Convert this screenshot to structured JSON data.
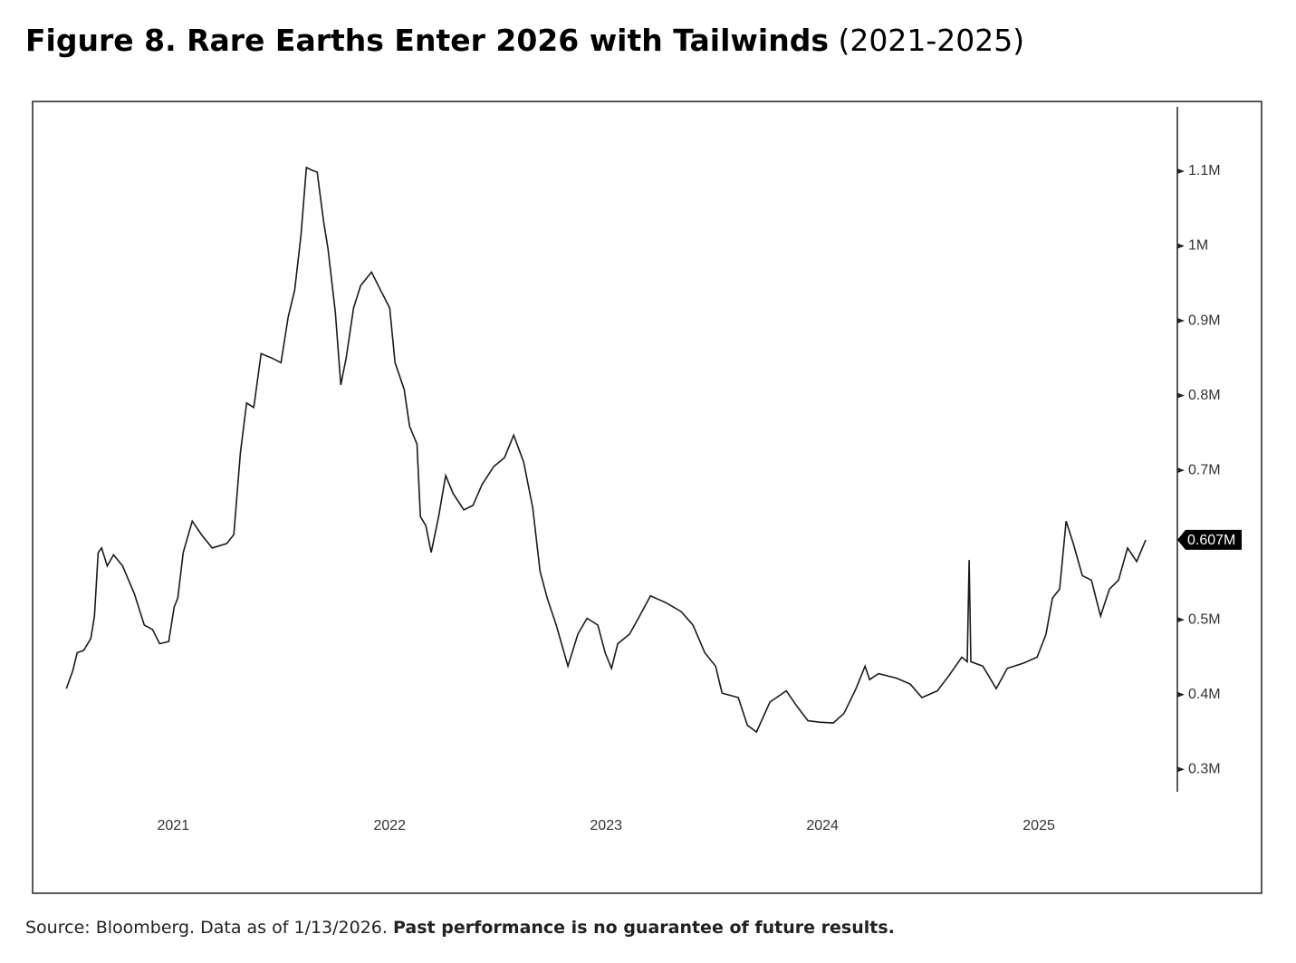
{
  "chart_data": {
    "type": "line",
    "title": "Figure 8. Rare Earths Enter 2026 with Tailwinds",
    "subtitle": "(2021-2025)",
    "source": "Source: Bloomberg. Data as of 1/13/2026.",
    "note": "Past performance is no guarantee of future results.",
    "x": [
      2020.506,
      2020.536,
      2020.556,
      2020.586,
      2020.619,
      2020.636,
      2020.653,
      2020.669,
      2020.695,
      2020.724,
      2020.766,
      2020.82,
      2020.866,
      2020.904,
      2020.937,
      2020.979,
      2021.004,
      2021.021,
      2021.046,
      2021.088,
      2021.13,
      2021.18,
      2021.247,
      2021.28,
      2021.31,
      2021.339,
      2021.372,
      2021.406,
      2021.456,
      2021.498,
      2021.531,
      2021.561,
      2021.59,
      2021.615,
      2021.644,
      2021.665,
      2021.695,
      2021.715,
      2021.749,
      2021.774,
      2021.799,
      2021.833,
      2021.866,
      2021.916,
      2021.958,
      2022.0,
      2022.025,
      2022.067,
      2022.092,
      2022.126,
      2022.142,
      2022.167,
      2022.192,
      2022.226,
      2022.259,
      2022.293,
      2022.343,
      2022.385,
      2022.427,
      2022.481,
      2022.531,
      2022.573,
      2022.619,
      2022.661,
      2022.695,
      2022.728,
      2022.77,
      2022.824,
      2022.87,
      2022.912,
      2022.962,
      2022.996,
      2023.025,
      2023.054,
      2023.109,
      2023.155,
      2023.205,
      2023.276,
      2023.347,
      2023.402,
      2023.456,
      2023.506,
      2023.536,
      2023.611,
      2023.653,
      2023.695,
      2023.757,
      2023.833,
      2023.883,
      2023.933,
      2023.987,
      2024.05,
      2024.1,
      2024.155,
      2024.197,
      2024.218,
      2024.259,
      2024.343,
      2024.406,
      2024.46,
      2024.531,
      2024.586,
      2024.644,
      2024.669,
      2024.678,
      2024.686,
      2024.741,
      2024.803,
      2024.854,
      2024.929,
      2024.992,
      2025.033,
      2025.063,
      2025.096,
      2025.126,
      2025.159,
      2025.201,
      2025.243,
      2025.285,
      2025.326,
      2025.368,
      2025.41,
      2025.452,
      2025.494
    ],
    "series": [
      {
        "color": "#1a1a1a",
        "values": [
          408000,
          432000,
          456000,
          459000,
          475000,
          505000,
          590000,
          596000,
          572000,
          587000,
          572000,
          535000,
          493000,
          487000,
          468000,
          471000,
          517000,
          529000,
          590000,
          632000,
          614000,
          596000,
          602000,
          614000,
          723000,
          790000,
          784000,
          856000,
          850000,
          844000,
          905000,
          941000,
          1014000,
          1105000,
          1101000,
          1099000,
          1032000,
          996000,
          911000,
          814000,
          850000,
          917000,
          947000,
          965000,
          941000,
          917000,
          844000,
          808000,
          759000,
          735000,
          638000,
          626000,
          590000,
          638000,
          693000,
          669000,
          647000,
          653000,
          681000,
          705000,
          717000,
          747000,
          711000,
          650000,
          565000,
          529000,
          493000,
          438000,
          481000,
          502000,
          493000,
          456000,
          435000,
          468000,
          481000,
          505000,
          532000,
          523000,
          511000,
          493000,
          456000,
          438000,
          402000,
          396000,
          359000,
          350000,
          390000,
          405000,
          384000,
          365000,
          363000,
          362000,
          375000,
          408000,
          438000,
          420000,
          428000,
          422000,
          414000,
          396000,
          405000,
          426000,
          450000,
          444000,
          580000,
          444000,
          438000,
          408000,
          435000,
          442000,
          450000,
          481000,
          529000,
          541000,
          632000,
          602000,
          559000,
          553000,
          505000,
          541000,
          553000,
          596000,
          578000,
          607000
        ]
      }
    ],
    "last_label": {
      "value": 607000,
      "label": "0.607M"
    },
    "xlim": [
      2020.35,
      2025.64
    ],
    "xticks": [
      2021,
      2022,
      2023,
      2024,
      2025
    ],
    "ylim": [
      270000,
      1186000
    ],
    "yticks": [
      {
        "value": 300000,
        "label": "0.3M"
      },
      {
        "value": 400000,
        "label": "0.4M"
      },
      {
        "value": 500000,
        "label": "0.5M"
      },
      {
        "value": 700000,
        "label": "0.7M"
      },
      {
        "value": 800000,
        "label": "0.8M"
      },
      {
        "value": 900000,
        "label": "0.9M"
      },
      {
        "value": 1000000,
        "label": "1M"
      },
      {
        "value": 1100000,
        "label": "1.1M"
      }
    ]
  }
}
